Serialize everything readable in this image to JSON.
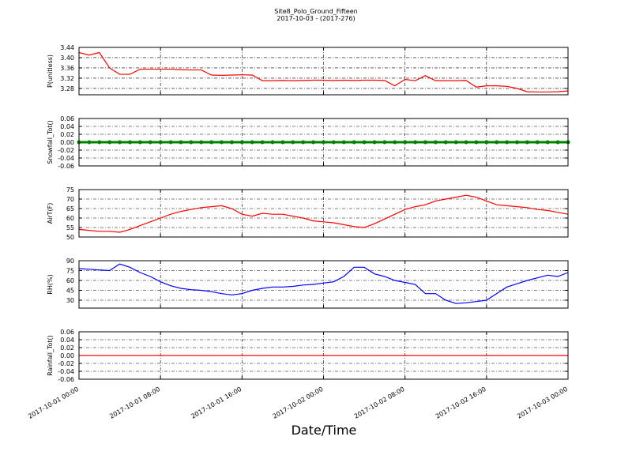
{
  "title": "Site8_Polo_Ground_Fifteen",
  "subtitle": "2017-10-03 - (2017-276)",
  "xlabel": "Date/Time",
  "chart_data": [
    {
      "type": "line",
      "ylabel": "P(unitless)",
      "x": [
        "2017-10-01 00:00",
        "2017-10-01 01:00",
        "2017-10-01 02:00",
        "2017-10-01 03:00",
        "2017-10-01 04:00",
        "2017-10-01 05:00",
        "2017-10-01 06:00",
        "2017-10-01 07:00",
        "2017-10-01 08:00",
        "2017-10-01 09:00",
        "2017-10-01 10:00",
        "2017-10-01 11:00",
        "2017-10-01 12:00",
        "2017-10-01 13:00",
        "2017-10-01 14:00",
        "2017-10-01 15:00",
        "2017-10-01 16:00",
        "2017-10-01 17:00",
        "2017-10-01 18:00",
        "2017-10-01 19:00",
        "2017-10-01 20:00",
        "2017-10-01 21:00",
        "2017-10-01 22:00",
        "2017-10-01 23:00",
        "2017-10-02 00:00",
        "2017-10-02 01:00",
        "2017-10-02 02:00",
        "2017-10-02 03:00",
        "2017-10-02 04:00",
        "2017-10-02 05:00",
        "2017-10-02 06:00",
        "2017-10-02 07:00",
        "2017-10-02 08:00",
        "2017-10-02 09:00",
        "2017-10-02 10:00",
        "2017-10-02 11:00",
        "2017-10-02 12:00",
        "2017-10-02 13:00",
        "2017-10-02 14:00",
        "2017-10-02 15:00",
        "2017-10-02 16:00",
        "2017-10-02 17:00",
        "2017-10-02 18:00",
        "2017-10-02 19:00",
        "2017-10-02 20:00",
        "2017-10-02 21:00",
        "2017-10-02 22:00",
        "2017-10-02 23:00",
        "2017-10-03 00:00"
      ],
      "values": [
        3.42,
        3.41,
        3.42,
        3.36,
        3.335,
        3.335,
        3.355,
        3.355,
        3.355,
        3.355,
        3.353,
        3.352,
        3.352,
        3.332,
        3.331,
        3.332,
        3.333,
        3.332,
        3.31,
        3.31,
        3.311,
        3.31,
        3.311,
        3.312,
        3.312,
        3.311,
        3.312,
        3.311,
        3.312,
        3.312,
        3.311,
        3.29,
        3.315,
        3.31,
        3.33,
        3.31,
        3.31,
        3.31,
        3.311,
        3.285,
        3.29,
        3.29,
        3.288,
        3.28,
        3.267,
        3.266,
        3.266,
        3.267,
        3.27
      ],
      "color": "#ff0000",
      "marker": false,
      "xlim": [
        "2017-10-01 00:00",
        "2017-10-03 00:00"
      ],
      "xticks": [
        "2017-10-01 00:00",
        "2017-10-01 08:00",
        "2017-10-01 16:00",
        "2017-10-02 00:00",
        "2017-10-02 08:00",
        "2017-10-02 16:00",
        "2017-10-03 00:00"
      ],
      "ylim": [
        3.255,
        3.44
      ],
      "yticks": [
        3.28,
        3.32,
        3.36,
        {
          "value": 3.4,
          "label": "3.40"
        },
        3.44
      ],
      "grid": true
    },
    {
      "type": "line",
      "ylabel": "Snowfall_Tot()",
      "x": [
        "2017-10-01 00:00",
        "2017-10-01 01:00",
        "2017-10-01 02:00",
        "2017-10-01 03:00",
        "2017-10-01 04:00",
        "2017-10-01 05:00",
        "2017-10-01 06:00",
        "2017-10-01 07:00",
        "2017-10-01 08:00",
        "2017-10-01 09:00",
        "2017-10-01 10:00",
        "2017-10-01 11:00",
        "2017-10-01 12:00",
        "2017-10-01 13:00",
        "2017-10-01 14:00",
        "2017-10-01 15:00",
        "2017-10-01 16:00",
        "2017-10-01 17:00",
        "2017-10-01 18:00",
        "2017-10-01 19:00",
        "2017-10-01 20:00",
        "2017-10-01 21:00",
        "2017-10-01 22:00",
        "2017-10-01 23:00",
        "2017-10-02 00:00",
        "2017-10-02 01:00",
        "2017-10-02 02:00",
        "2017-10-02 03:00",
        "2017-10-02 04:00",
        "2017-10-02 05:00",
        "2017-10-02 06:00",
        "2017-10-02 07:00",
        "2017-10-02 08:00",
        "2017-10-02 09:00",
        "2017-10-02 10:00",
        "2017-10-02 11:00",
        "2017-10-02 12:00",
        "2017-10-02 13:00",
        "2017-10-02 14:00",
        "2017-10-02 15:00",
        "2017-10-02 16:00",
        "2017-10-02 17:00",
        "2017-10-02 18:00",
        "2017-10-02 19:00",
        "2017-10-02 20:00",
        "2017-10-02 21:00",
        "2017-10-02 22:00",
        "2017-10-02 23:00",
        "2017-10-03 00:00"
      ],
      "values": [
        0,
        0,
        0,
        0,
        0,
        0,
        0,
        0,
        0,
        0,
        0,
        0,
        0,
        0,
        0,
        0,
        0,
        0,
        0,
        0,
        0,
        0,
        0,
        0,
        0,
        0,
        0,
        0,
        0,
        0,
        0,
        0,
        0,
        0,
        0,
        0,
        0,
        0,
        0,
        0,
        0,
        0,
        0,
        0,
        0,
        0,
        0,
        0,
        0
      ],
      "color": "#008000",
      "marker": true,
      "xlim": [
        "2017-10-01 00:00",
        "2017-10-03 00:00"
      ],
      "xticks": [
        "2017-10-01 00:00",
        "2017-10-01 08:00",
        "2017-10-01 16:00",
        "2017-10-02 00:00",
        "2017-10-02 08:00",
        "2017-10-02 16:00",
        "2017-10-03 00:00"
      ],
      "ylim": [
        -0.06,
        0.06
      ],
      "yticks": [
        -0.06,
        -0.04,
        -0.02,
        {
          "value": 0,
          "label": "0.00"
        },
        0.02,
        0.04,
        0.06
      ],
      "grid": true
    },
    {
      "type": "line",
      "ylabel": "AirT(F)",
      "x": [
        "2017-10-01 00:00",
        "2017-10-01 01:00",
        "2017-10-01 02:00",
        "2017-10-01 03:00",
        "2017-10-01 04:00",
        "2017-10-01 05:00",
        "2017-10-01 06:00",
        "2017-10-01 07:00",
        "2017-10-01 08:00",
        "2017-10-01 09:00",
        "2017-10-01 10:00",
        "2017-10-01 11:00",
        "2017-10-01 12:00",
        "2017-10-01 13:00",
        "2017-10-01 14:00",
        "2017-10-01 15:00",
        "2017-10-01 16:00",
        "2017-10-01 17:00",
        "2017-10-01 18:00",
        "2017-10-01 19:00",
        "2017-10-01 20:00",
        "2017-10-01 21:00",
        "2017-10-01 22:00",
        "2017-10-01 23:00",
        "2017-10-02 00:00",
        "2017-10-02 01:00",
        "2017-10-02 02:00",
        "2017-10-02 03:00",
        "2017-10-02 04:00",
        "2017-10-02 05:00",
        "2017-10-02 06:00",
        "2017-10-02 07:00",
        "2017-10-02 08:00",
        "2017-10-02 09:00",
        "2017-10-02 10:00",
        "2017-10-02 11:00",
        "2017-10-02 12:00",
        "2017-10-02 13:00",
        "2017-10-02 14:00",
        "2017-10-02 15:00",
        "2017-10-02 16:00",
        "2017-10-02 17:00",
        "2017-10-02 18:00",
        "2017-10-02 19:00",
        "2017-10-02 20:00",
        "2017-10-02 21:00",
        "2017-10-02 22:00",
        "2017-10-02 23:00",
        "2017-10-03 00:00"
      ],
      "values": [
        54,
        53.5,
        53,
        53,
        52.5,
        54,
        56,
        58,
        60,
        62,
        63.5,
        64.5,
        65.5,
        66,
        66.5,
        65,
        62,
        61,
        62.5,
        62,
        62,
        61,
        60,
        58.5,
        58,
        57.5,
        56.5,
        55.5,
        55,
        57,
        59.5,
        62,
        64.5,
        66,
        67,
        69,
        70,
        71,
        72,
        71,
        69,
        67,
        66.5,
        66,
        65.5,
        64.5,
        64,
        63,
        62
      ],
      "color": "#ff0000",
      "marker": false,
      "xlim": [
        "2017-10-01 00:00",
        "2017-10-03 00:00"
      ],
      "xticks": [
        "2017-10-01 00:00",
        "2017-10-01 08:00",
        "2017-10-01 16:00",
        "2017-10-02 00:00",
        "2017-10-02 08:00",
        "2017-10-02 16:00",
        "2017-10-03 00:00"
      ],
      "ylim": [
        50,
        75
      ],
      "yticks": [
        50,
        55,
        60,
        65,
        70,
        75
      ],
      "grid": true
    },
    {
      "type": "line",
      "ylabel": "RH(%)",
      "x": [
        "2017-10-01 00:00",
        "2017-10-01 01:00",
        "2017-10-01 02:00",
        "2017-10-01 03:00",
        "2017-10-01 04:00",
        "2017-10-01 05:00",
        "2017-10-01 06:00",
        "2017-10-01 07:00",
        "2017-10-01 08:00",
        "2017-10-01 09:00",
        "2017-10-01 10:00",
        "2017-10-01 11:00",
        "2017-10-01 12:00",
        "2017-10-01 13:00",
        "2017-10-01 14:00",
        "2017-10-01 15:00",
        "2017-10-01 16:00",
        "2017-10-01 17:00",
        "2017-10-01 18:00",
        "2017-10-01 19:00",
        "2017-10-01 20:00",
        "2017-10-01 21:00",
        "2017-10-01 22:00",
        "2017-10-01 23:00",
        "2017-10-02 00:00",
        "2017-10-02 01:00",
        "2017-10-02 02:00",
        "2017-10-02 03:00",
        "2017-10-02 04:00",
        "2017-10-02 05:00",
        "2017-10-02 06:00",
        "2017-10-02 07:00",
        "2017-10-02 08:00",
        "2017-10-02 09:00",
        "2017-10-02 10:00",
        "2017-10-02 11:00",
        "2017-10-02 12:00",
        "2017-10-02 13:00",
        "2017-10-02 14:00",
        "2017-10-02 15:00",
        "2017-10-02 16:00",
        "2017-10-02 17:00",
        "2017-10-02 18:00",
        "2017-10-02 19:00",
        "2017-10-02 20:00",
        "2017-10-02 21:00",
        "2017-10-02 22:00",
        "2017-10-02 23:00",
        "2017-10-03 00:00"
      ],
      "values": [
        78,
        77,
        76,
        75,
        85,
        80,
        72,
        66,
        58,
        52,
        48,
        46,
        45,
        43,
        40,
        38,
        40,
        45,
        48,
        50,
        50,
        51,
        53,
        54,
        56,
        58,
        66,
        80,
        80,
        70,
        66,
        60,
        57,
        54,
        40,
        40,
        30,
        25,
        26,
        28,
        30,
        40,
        50,
        55,
        60,
        64,
        68,
        66,
        72
      ],
      "color": "#0000ff",
      "marker": false,
      "xlim": [
        "2017-10-01 00:00",
        "2017-10-03 00:00"
      ],
      "xticks": [
        "2017-10-01 00:00",
        "2017-10-01 08:00",
        "2017-10-01 16:00",
        "2017-10-02 00:00",
        "2017-10-02 08:00",
        "2017-10-02 16:00",
        "2017-10-03 00:00"
      ],
      "ylim": [
        18,
        90
      ],
      "yticks": [
        30,
        45,
        60,
        75,
        90
      ],
      "grid": true
    },
    {
      "type": "line",
      "ylabel": "Rainfall_Tot()",
      "x": [
        "2017-10-01 00:00",
        "2017-10-01 01:00",
        "2017-10-01 02:00",
        "2017-10-01 03:00",
        "2017-10-01 04:00",
        "2017-10-01 05:00",
        "2017-10-01 06:00",
        "2017-10-01 07:00",
        "2017-10-01 08:00",
        "2017-10-01 09:00",
        "2017-10-01 10:00",
        "2017-10-01 11:00",
        "2017-10-01 12:00",
        "2017-10-01 13:00",
        "2017-10-01 14:00",
        "2017-10-01 15:00",
        "2017-10-01 16:00",
        "2017-10-01 17:00",
        "2017-10-01 18:00",
        "2017-10-01 19:00",
        "2017-10-01 20:00",
        "2017-10-01 21:00",
        "2017-10-01 22:00",
        "2017-10-01 23:00",
        "2017-10-02 00:00",
        "2017-10-02 01:00",
        "2017-10-02 02:00",
        "2017-10-02 03:00",
        "2017-10-02 04:00",
        "2017-10-02 05:00",
        "2017-10-02 06:00",
        "2017-10-02 07:00",
        "2017-10-02 08:00",
        "2017-10-02 09:00",
        "2017-10-02 10:00",
        "2017-10-02 11:00",
        "2017-10-02 12:00",
        "2017-10-02 13:00",
        "2017-10-02 14:00",
        "2017-10-02 15:00",
        "2017-10-02 16:00",
        "2017-10-02 17:00",
        "2017-10-02 18:00",
        "2017-10-02 19:00",
        "2017-10-02 20:00",
        "2017-10-02 21:00",
        "2017-10-02 22:00",
        "2017-10-02 23:00",
        "2017-10-03 00:00"
      ],
      "values": [
        0,
        0,
        0,
        0,
        0,
        0,
        0,
        0,
        0,
        0,
        0,
        0,
        0,
        0,
        0,
        0,
        0,
        0,
        0,
        0,
        0,
        0,
        0,
        0,
        0,
        0,
        0,
        0,
        0,
        0,
        0,
        0,
        0,
        0,
        0,
        0,
        0,
        0,
        0,
        0,
        0,
        0,
        0,
        0,
        0,
        0,
        0,
        0,
        0
      ],
      "color": "#ff0000",
      "marker": false,
      "xlim": [
        "2017-10-01 00:00",
        "2017-10-03 00:00"
      ],
      "xticks": [
        "2017-10-01 00:00",
        "2017-10-01 08:00",
        "2017-10-01 16:00",
        "2017-10-02 00:00",
        "2017-10-02 08:00",
        "2017-10-02 16:00",
        "2017-10-03 00:00"
      ],
      "ylim": [
        -0.06,
        0.06
      ],
      "yticks": [
        -0.06,
        -0.04,
        -0.02,
        {
          "value": 0,
          "label": "0.00"
        },
        0.02,
        0.04,
        0.06
      ],
      "grid": true
    }
  ]
}
